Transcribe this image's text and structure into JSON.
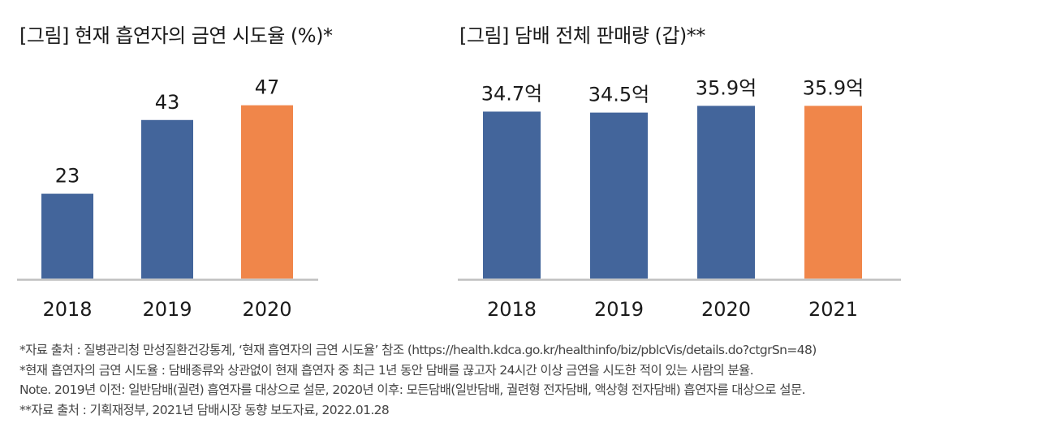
{
  "colors": {
    "primary": "#43659b",
    "highlight": "#f0864a",
    "axis": "#bfbfbf",
    "text": "#1a1a1a"
  },
  "chart_data": [
    {
      "type": "bar",
      "title": "[그림] 현재 흡연자의 금연 시도율 (%)*",
      "categories": [
        "2018",
        "2019",
        "2020"
      ],
      "values": [
        23,
        43,
        47
      ],
      "labels": [
        "23",
        "43",
        "47"
      ],
      "highlight_index": 2,
      "xlabel": "",
      "ylabel": "",
      "ylim": [
        0,
        50
      ],
      "grid": false
    },
    {
      "type": "bar",
      "title": "[그림] 담배 전체 판매량 (갑)**",
      "categories": [
        "2018",
        "2019",
        "2020",
        "2021"
      ],
      "values": [
        34.7,
        34.5,
        35.9,
        35.9
      ],
      "labels": [
        "34.7억",
        "34.5억",
        "35.9억",
        "35.9억"
      ],
      "highlight_index": 3,
      "xlabel": "",
      "ylabel": "",
      "ylim": [
        0,
        36.8
      ],
      "grid": false
    }
  ],
  "notes": [
    "*자료 출처 : 질병관리청 만성질환건강통계, ‘현재 흡연자의 금연 시도율’ 참조 (https://health.kdca.go.kr/healthinfo/biz/pblcVis/details.do?ctgrSn=48)",
    "*현재 흡연자의 금연 시도율 : 담배종류와 상관없이 현재 흡연자 중 최근 1년 동안 담배를 끊고자 24시간 이상 금연을 시도한 적이 있는 사람의 분율.",
    "Note. 2019년 이전: 일반담배(궐련) 흡연자를 대상으로 설문, 2020년 이후: 모든담배(일반담배, 궐련형 전자담배, 액상형 전자담배) 흡연자를 대상으로 설문.",
    "**자료 출처 : 기획재정부, 2021년 담배시장 동향 보도자료, 2022.01.28"
  ]
}
